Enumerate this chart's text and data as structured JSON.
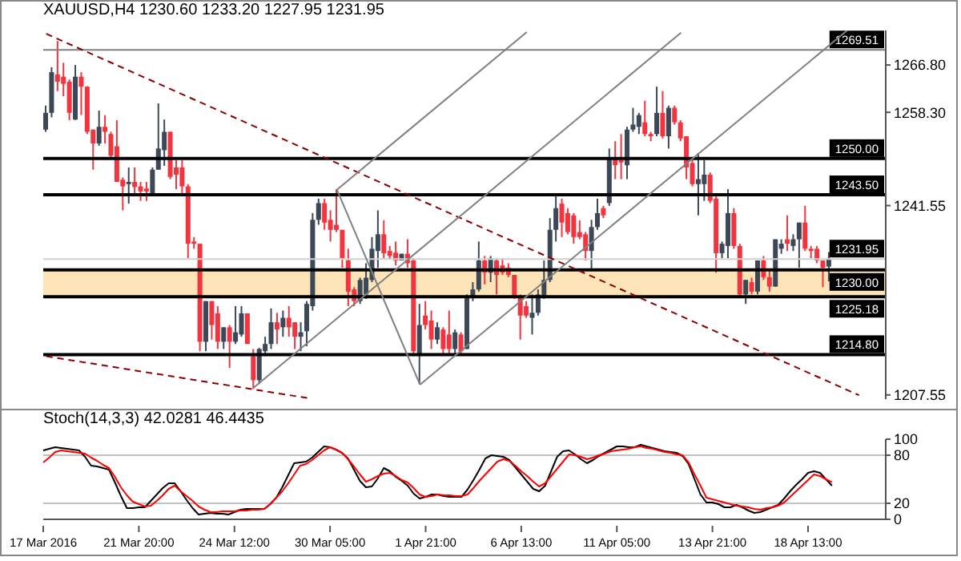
{
  "chart_data": [
    {
      "type": "candlestick",
      "title": "XAUUSD,H4 1230.60 1233.20 1227.95 1231.95",
      "categories": [
        null,
        null,
        null,
        null,
        null,
        null,
        null,
        null,
        null,
        null,
        null,
        null,
        null,
        null,
        null,
        null,
        null,
        null,
        null,
        null,
        null,
        null,
        null,
        null,
        null,
        null,
        null,
        null,
        null,
        null,
        null,
        null,
        null,
        null,
        null,
        null,
        null,
        null,
        null,
        null,
        null,
        null,
        null,
        null,
        null,
        null,
        null,
        null,
        null,
        null,
        null,
        null,
        null,
        null,
        null,
        null,
        null,
        null,
        null,
        null,
        null,
        null,
        null,
        null,
        null,
        null,
        null,
        null,
        null,
        null,
        null,
        null,
        null,
        null,
        null,
        null,
        null,
        null,
        null,
        null,
        null,
        null,
        null,
        null,
        null,
        null,
        null,
        null,
        null,
        null,
        null,
        null,
        null,
        null,
        null,
        null,
        null,
        null,
        null,
        null,
        null,
        null,
        null,
        null,
        null,
        null,
        null,
        null,
        null,
        null,
        null,
        null,
        null,
        null,
        null,
        null,
        null,
        null,
        null,
        null,
        null,
        null,
        null,
        null,
        null,
        null,
        null,
        null,
        null,
        null,
        null,
        null,
        null,
        null,
        null,
        null,
        null,
        null,
        null,
        null,
        null,
        null
      ],
      "ohlc": [
        [
          1255.2,
          1259.5,
          1254.8,
          1258.2
        ],
        [
          1258.2,
          1266.4,
          1257.4,
          1265.5
        ],
        [
          1265.1,
          1271.1,
          1262.1,
          1263.8
        ],
        [
          1264.7,
          1267.2,
          1261.2,
          1263.4
        ],
        [
          1263.8,
          1264.2,
          1256.9,
          1258.2
        ],
        [
          1257.0,
          1266.8,
          1256.9,
          1264.7
        ],
        [
          1264.7,
          1265.5,
          1257.8,
          1262.9
        ],
        [
          1262.9,
          1263.0,
          1254.4,
          1254.8
        ],
        [
          1255.2,
          1255.2,
          1248.0,
          1252.7
        ],
        [
          1252.7,
          1258.6,
          1252.3,
          1255.7
        ],
        [
          1255.7,
          1257.8,
          1252.7,
          1254.8
        ],
        [
          1254.4,
          1254.8,
          1250.0,
          1250.5
        ],
        [
          1252.2,
          1256.9,
          1245.8,
          1245.8
        ],
        [
          1246.2,
          1246.6,
          1240.7,
          1245.0
        ],
        [
          1245.4,
          1248.4,
          1241.9,
          1245.8
        ],
        [
          1245.8,
          1248.4,
          1243.2,
          1244.9
        ],
        [
          1245.0,
          1245.8,
          1242.4,
          1244.1
        ],
        [
          1244.6,
          1245.8,
          1242.4,
          1244.1
        ],
        [
          1243.7,
          1248.4,
          1243.2,
          1248.0
        ],
        [
          1248.0,
          1259.9,
          1248.0,
          1251.8
        ],
        [
          1251.5,
          1257.0,
          1248.7,
          1254.8
        ],
        [
          1254.8,
          1254.8,
          1246.3,
          1246.7
        ],
        [
          1248.4,
          1249.7,
          1244.5,
          1247.1
        ],
        [
          1248.4,
          1249.7,
          1243.3,
          1245.0
        ],
        [
          1245.0,
          1245.4,
          1232.1,
          1234.7
        ],
        [
          1235.1,
          1235.9,
          1233.8,
          1234.7
        ],
        [
          1234.7,
          1234.7,
          1215.4,
          1217.1
        ],
        [
          1217.1,
          1224.4,
          1215.4,
          1224.4
        ],
        [
          1224.4,
          1224.4,
          1217.5,
          1220.1
        ],
        [
          1222.2,
          1223.5,
          1215.8,
          1217.1
        ],
        [
          1217.1,
          1219.7,
          1215.8,
          1219.7
        ],
        [
          1219.7,
          1220.1,
          1212.4,
          1217.1
        ],
        [
          1217.1,
          1223.5,
          1216.7,
          1218.8
        ],
        [
          1218.4,
          1223.5,
          1218.0,
          1222.2
        ],
        [
          1222.2,
          1222.2,
          1216.7,
          1216.7
        ],
        [
          1214.5,
          1215.8,
          1208.6,
          1210.2
        ],
        [
          1210.2,
          1216.0,
          1209.5,
          1215.8
        ],
        [
          1215.4,
          1218.0,
          1214.5,
          1216.7
        ],
        [
          1216.7,
          1223.1,
          1215.8,
          1220.6
        ],
        [
          1220.6,
          1222.3,
          1216.7,
          1219.3
        ],
        [
          1219.7,
          1222.7,
          1218.0,
          1221.4
        ],
        [
          1221.4,
          1223.5,
          1218.0,
          1219.7
        ],
        [
          1220.6,
          1220.6,
          1215.8,
          1218.0
        ],
        [
          1218.0,
          1220.6,
          1215.4,
          1218.8
        ],
        [
          1219.0,
          1224.4,
          1216.3,
          1223.9
        ],
        [
          1223.5,
          1240.2,
          1222.7,
          1239.0
        ],
        [
          1239.0,
          1242.8,
          1238.1,
          1242.0
        ],
        [
          1242.0,
          1242.8,
          1237.2,
          1238.5
        ],
        [
          1239.0,
          1240.7,
          1235.1,
          1237.2
        ],
        [
          1238.1,
          1244.5,
          1236.8,
          1237.2
        ],
        [
          1237.2,
          1237.2,
          1230.4,
          1232.1
        ],
        [
          1231.7,
          1233.8,
          1223.5,
          1226.1
        ],
        [
          1226.5,
          1226.9,
          1223.5,
          1224.4
        ],
        [
          1224.4,
          1228.6,
          1223.9,
          1228.2
        ],
        [
          1225.6,
          1231.2,
          1224.8,
          1228.6
        ],
        [
          1228.2,
          1235.9,
          1227.8,
          1233.8
        ],
        [
          1233.4,
          1240.7,
          1230.4,
          1236.4
        ],
        [
          1236.4,
          1238.9,
          1232.1,
          1233.0
        ],
        [
          1233.4,
          1234.3,
          1231.9,
          1232.5
        ],
        [
          1233.1,
          1235.1,
          1230.8,
          1231.7
        ],
        [
          1231.7,
          1232.9,
          1231.7,
          1232.9
        ],
        [
          1232.9,
          1235.5,
          1230.4,
          1231.2
        ],
        [
          1231.7,
          1232.1,
          1214.5,
          1215.4
        ],
        [
          1214.9,
          1223.9,
          1209.5,
          1220.1
        ],
        [
          1221.8,
          1224.4,
          1219.3,
          1220.1
        ],
        [
          1220.9,
          1222.7,
          1215.8,
          1217.5
        ],
        [
          1217.5,
          1220.6,
          1216.7,
          1219.7
        ],
        [
          1219.3,
          1219.7,
          1214.9,
          1215.8
        ],
        [
          1218.4,
          1222.7,
          1214.9,
          1215.8
        ],
        [
          1215.8,
          1219.3,
          1214.9,
          1218.8
        ],
        [
          1218.4,
          1218.8,
          1214.9,
          1215.4
        ],
        [
          1215.8,
          1225.6,
          1215.8,
          1225.2
        ],
        [
          1225.2,
          1227.8,
          1224.4,
          1226.5
        ],
        [
          1226.5,
          1235.1,
          1226.1,
          1231.7
        ],
        [
          1231.7,
          1232.5,
          1227.4,
          1229.5
        ],
        [
          1229.5,
          1232.5,
          1227.8,
          1232.1
        ],
        [
          1231.7,
          1232.1,
          1225.6,
          1229.1
        ],
        [
          1230.8,
          1232.1,
          1229.1,
          1229.5
        ],
        [
          1230.4,
          1231.2,
          1228.7,
          1229.1
        ],
        [
          1229.1,
          1229.1,
          1224.8,
          1225.2
        ],
        [
          1225.2,
          1225.6,
          1217.5,
          1221.8
        ],
        [
          1223.5,
          1224.4,
          1221.4,
          1221.8
        ],
        [
          1221.4,
          1225.6,
          1218.4,
          1222.3
        ],
        [
          1222.3,
          1226.5,
          1221.8,
          1225.6
        ],
        [
          1225.2,
          1231.7,
          1224.8,
          1228.2
        ],
        [
          1228.2,
          1239.3,
          1227.8,
          1237.2
        ],
        [
          1237.2,
          1243.2,
          1235.1,
          1241.1
        ],
        [
          1241.9,
          1242.8,
          1235.9,
          1238.5
        ],
        [
          1240.2,
          1241.1,
          1236.4,
          1236.8
        ],
        [
          1239.8,
          1240.2,
          1234.7,
          1235.9
        ],
        [
          1236.8,
          1238.9,
          1235.5,
          1235.9
        ],
        [
          1236.4,
          1236.8,
          1231.7,
          1233.4
        ],
        [
          1233.4,
          1239.0,
          1229.9,
          1237.7
        ],
        [
          1237.7,
          1242.8,
          1237.2,
          1240.2
        ],
        [
          1241.1,
          1241.5,
          1239.3,
          1239.8
        ],
        [
          1242.0,
          1251.8,
          1241.5,
          1250.1
        ],
        [
          1250.1,
          1253.1,
          1246.3,
          1248.8
        ],
        [
          1249.7,
          1254.4,
          1246.3,
          1249.3
        ],
        [
          1248.8,
          1255.7,
          1246.3,
          1255.2
        ],
        [
          1255.2,
          1259.1,
          1254.8,
          1256.1
        ],
        [
          1255.7,
          1258.2,
          1254.4,
          1257.8
        ],
        [
          1256.5,
          1260.4,
          1254.0,
          1254.4
        ],
        [
          1254.4,
          1254.8,
          1253.1,
          1254.0
        ],
        [
          1254.4,
          1262.9,
          1254.0,
          1258.2
        ],
        [
          1258.2,
          1262.1,
          1253.6,
          1254.0
        ],
        [
          1254.0,
          1259.5,
          1251.8,
          1259.1
        ],
        [
          1259.1,
          1259.5,
          1256.1,
          1256.5
        ],
        [
          1256.5,
          1256.9,
          1253.1,
          1253.6
        ],
        [
          1254.0,
          1254.0,
          1246.3,
          1248.4
        ],
        [
          1249.2,
          1249.7,
          1245.0,
          1245.4
        ],
        [
          1245.4,
          1251.0,
          1239.8,
          1246.3
        ],
        [
          1245.4,
          1249.7,
          1242.4,
          1247.1
        ],
        [
          1247.1,
          1247.5,
          1242.0,
          1242.4
        ],
        [
          1242.8,
          1243.2,
          1229.5,
          1233.0
        ],
        [
          1233.0,
          1235.1,
          1232.1,
          1234.7
        ],
        [
          1234.3,
          1244.5,
          1232.1,
          1240.2
        ],
        [
          1240.2,
          1241.1,
          1233.8,
          1234.3
        ],
        [
          1234.3,
          1234.7,
          1225.2,
          1225.6
        ],
        [
          1225.6,
          1228.2,
          1223.9,
          1228.2
        ],
        [
          1227.8,
          1228.6,
          1225.6,
          1226.1
        ],
        [
          1226.1,
          1231.7,
          1225.6,
          1231.7
        ],
        [
          1231.7,
          1232.5,
          1228.2,
          1228.7
        ],
        [
          1228.7,
          1230.0,
          1226.1,
          1227.0
        ],
        [
          1227.0,
          1235.5,
          1227.0,
          1235.5
        ],
        [
          1233.8,
          1235.5,
          1232.9,
          1234.7
        ],
        [
          1235.5,
          1239.8,
          1233.4,
          1234.7
        ],
        [
          1234.3,
          1236.4,
          1233.4,
          1235.5
        ],
        [
          1235.5,
          1238.5,
          1230.4,
          1238.5
        ],
        [
          1238.5,
          1241.5,
          1233.4,
          1233.8
        ],
        [
          1233.8,
          1234.3,
          1232.1,
          1233.4
        ],
        [
          1233.8,
          1234.3,
          1231.2,
          1231.7
        ],
        [
          1231.7,
          1231.7,
          1226.9,
          1230.4
        ],
        [
          1230.6,
          1233.2,
          1227.95,
          1231.95
        ],
        null,
        null,
        null,
        null,
        null,
        null,
        null,
        null,
        null
      ],
      "series": [
        {
          "type": "line",
          "color": "#8b0000",
          "line_style": "dashed",
          "values": [
            1272.4,
            null,
            null,
            null,
            null,
            null,
            null,
            null,
            null,
            null,
            null,
            null,
            null,
            null,
            null,
            null,
            null,
            null,
            null,
            null,
            null,
            null,
            null,
            null,
            null,
            null,
            null,
            null,
            null,
            null,
            null,
            null,
            null,
            null,
            null,
            null,
            null,
            null,
            null,
            null,
            null,
            null,
            null,
            null,
            null,
            null,
            null,
            null,
            null,
            null,
            null,
            null,
            null,
            null,
            null,
            null,
            null,
            null,
            null,
            null,
            null,
            null,
            null,
            null,
            null,
            null,
            null,
            null,
            null,
            null,
            null,
            null,
            null,
            null,
            null,
            null,
            null,
            null,
            null,
            null,
            null,
            null,
            null,
            null,
            null,
            null,
            null,
            null,
            null,
            null,
            null,
            null,
            null,
            null,
            null,
            null,
            null,
            null,
            null,
            null,
            null,
            null,
            null,
            null,
            null,
            null,
            null,
            null,
            null,
            null,
            null,
            null,
            null,
            null,
            null,
            null,
            null,
            null,
            null,
            null,
            null,
            null,
            null,
            null,
            null,
            null,
            null,
            null,
            null,
            null,
            null,
            null,
            null,
            null,
            null,
            null,
            null,
            1207.5,
            null,
            null,
            null,
            null
          ]
        },
        {
          "type": "line",
          "color": "#8b0000",
          "line_style": "dashed",
          "values": [
            1214.5,
            null,
            null,
            null,
            null,
            null,
            null,
            null,
            null,
            null,
            null,
            null,
            null,
            null,
            null,
            null,
            null,
            null,
            null,
            null,
            null,
            null,
            null,
            null,
            null,
            null,
            null,
            null,
            null,
            null,
            null,
            null,
            null,
            null,
            null,
            null,
            null,
            null,
            null,
            null,
            null,
            null,
            null,
            null,
            1207.0,
            null,
            null,
            null,
            null,
            null,
            null,
            null,
            null,
            null,
            null,
            null,
            null,
            null,
            null,
            null,
            null,
            null,
            null,
            null,
            null,
            null,
            null,
            null,
            null,
            null,
            null,
            null,
            null,
            null,
            null,
            null,
            null,
            null,
            null,
            null,
            null,
            null,
            null,
            null,
            null,
            null,
            null,
            null,
            null,
            null,
            null,
            null,
            null,
            null,
            null,
            null,
            null,
            null,
            null,
            null,
            null,
            null,
            null,
            null,
            null,
            null,
            null,
            null,
            null,
            null,
            null,
            null,
            null,
            null,
            null,
            null,
            null,
            null,
            null,
            null,
            null,
            null,
            null,
            null,
            null,
            null,
            null,
            null,
            null,
            null,
            null,
            null,
            null,
            null,
            null,
            null,
            null,
            null,
            null,
            null,
            null,
            null
          ]
        },
        {
          "type": "line",
          "color": "#808080",
          "line_style": "solid",
          "values": [
            null,
            null,
            null,
            null,
            null,
            null,
            null,
            null,
            null,
            null,
            null,
            null,
            null,
            null,
            null,
            null,
            null,
            null,
            null,
            null,
            null,
            null,
            null,
            null,
            null,
            null,
            null,
            null,
            null,
            null,
            null,
            null,
            null,
            null,
            null,
            null,
            null,
            null,
            null,
            null,
            null,
            null,
            null,
            null,
            null,
            null,
            null,
            null,
            null,
            1244.4,
            null,
            null,
            null,
            null,
            null,
            null,
            null,
            null,
            null,
            null,
            null,
            null,
            null,
            null,
            null,
            null,
            null,
            null,
            null,
            null,
            null,
            null,
            null,
            null,
            null,
            null,
            null,
            null,
            null,
            null,
            null,
            1272.7,
            null,
            null,
            null,
            null,
            null,
            null,
            null,
            null,
            null,
            null,
            null,
            null,
            null,
            null,
            null,
            null,
            null,
            null,
            null,
            null,
            null,
            null,
            null,
            null,
            null,
            null,
            null,
            null,
            null,
            null,
            null,
            null,
            null,
            null,
            null,
            null,
            null,
            null,
            null,
            null,
            null,
            null,
            null,
            null,
            null,
            null,
            null,
            null,
            null,
            null,
            null,
            null,
            null,
            null,
            null,
            null,
            null,
            null,
            null,
            null
          ]
        },
        {
          "type": "line",
          "color": "#808080",
          "line_style": "solid",
          "values": [
            null,
            null,
            null,
            null,
            null,
            null,
            null,
            null,
            null,
            null,
            null,
            null,
            null,
            null,
            null,
            null,
            null,
            null,
            null,
            null,
            null,
            null,
            null,
            null,
            null,
            null,
            null,
            null,
            null,
            null,
            null,
            null,
            null,
            null,
            null,
            1208.9,
            null,
            null,
            null,
            null,
            null,
            null,
            null,
            null,
            null,
            null,
            null,
            null,
            null,
            null,
            null,
            null,
            null,
            null,
            null,
            null,
            null,
            null,
            null,
            null,
            null,
            null,
            null,
            null,
            null,
            null,
            null,
            null,
            null,
            null,
            null,
            null,
            null,
            null,
            null,
            null,
            null,
            null,
            null,
            null,
            null,
            null,
            null,
            null,
            null,
            null,
            null,
            null,
            null,
            null,
            null,
            null,
            null,
            null,
            null,
            null,
            null,
            null,
            null,
            null,
            null,
            null,
            null,
            null,
            null,
            null,
            null,
            1272.6,
            null,
            null,
            null,
            null,
            null,
            null,
            null,
            null,
            null,
            null,
            null,
            null,
            null,
            null,
            null,
            null,
            null,
            null,
            null,
            null,
            null,
            null,
            null,
            null,
            null,
            null,
            null,
            null,
            null,
            null,
            null,
            null,
            null,
            null
          ]
        },
        {
          "type": "line",
          "color": "#808080",
          "line_style": "solid",
          "values": [
            null,
            null,
            null,
            null,
            null,
            null,
            null,
            null,
            null,
            null,
            null,
            null,
            null,
            null,
            null,
            null,
            null,
            null,
            null,
            null,
            null,
            null,
            null,
            null,
            null,
            null,
            null,
            null,
            null,
            null,
            null,
            null,
            null,
            null,
            null,
            null,
            null,
            null,
            null,
            null,
            null,
            null,
            null,
            null,
            null,
            null,
            null,
            null,
            null,
            null,
            null,
            null,
            null,
            null,
            null,
            null,
            null,
            null,
            null,
            null,
            null,
            null,
            null,
            1209.4,
            null,
            null,
            null,
            null,
            null,
            null,
            null,
            null,
            null,
            null,
            null,
            null,
            null,
            null,
            null,
            null,
            null,
            null,
            null,
            null,
            null,
            null,
            null,
            null,
            null,
            null,
            null,
            null,
            null,
            null,
            null,
            null,
            null,
            null,
            null,
            null,
            null,
            null,
            null,
            null,
            null,
            null,
            null,
            null,
            null,
            null,
            null,
            null,
            null,
            null,
            null,
            null,
            null,
            null,
            null,
            null,
            null,
            null,
            null,
            null,
            null,
            null,
            null,
            null,
            null,
            null,
            null,
            null,
            null,
            null,
            null,
            1273.0,
            null,
            null,
            null,
            null,
            null,
            null
          ]
        },
        {
          "type": "line",
          "color": "#808080",
          "line_style": "solid",
          "values": [
            null,
            null,
            null,
            null,
            null,
            null,
            null,
            null,
            null,
            null,
            null,
            null,
            null,
            null,
            null,
            null,
            null,
            null,
            null,
            null,
            null,
            null,
            null,
            null,
            null,
            null,
            null,
            null,
            null,
            null,
            null,
            null,
            null,
            null,
            null,
            null,
            null,
            null,
            null,
            null,
            null,
            null,
            null,
            null,
            null,
            null,
            null,
            null,
            null,
            1244.4,
            null,
            null,
            null,
            null,
            null,
            null,
            null,
            null,
            null,
            null,
            null,
            null,
            null,
            1209.4,
            null,
            null,
            null,
            null,
            null,
            null,
            null,
            null,
            null,
            null,
            null,
            null,
            null,
            null,
            null,
            null,
            null,
            null,
            null,
            null,
            null,
            null,
            null,
            null,
            null,
            null,
            null,
            null,
            null,
            null,
            null,
            null,
            null,
            null,
            null,
            null,
            null,
            null,
            null,
            null,
            null,
            null,
            null,
            null,
            null,
            null,
            null,
            null,
            null,
            null,
            null,
            null,
            null,
            null,
            null,
            null,
            null,
            null,
            null,
            null,
            null,
            null,
            null,
            null,
            null,
            null,
            null,
            null,
            null,
            null,
            null,
            null,
            null,
            null,
            null,
            null,
            null,
            null
          ]
        }
      ],
      "ylim": [
        1206.8,
        1273
      ],
      "yticks": [
        1207.55,
        1241.55,
        {
          "value": 1258.3,
          "label": "1258.30"
        },
        {
          "value": 1266.8,
          "label": "1266.80"
        }
      ],
      "tick_labels": "y",
      "ref_lines": [
        {
          "axis": "y",
          "value": 1269.51,
          "label": "1269.51",
          "color": "#808080"
        },
        {
          "axis": "y",
          "value": 1250,
          "label": "1250.00",
          "color": "#000000"
        },
        {
          "axis": "y",
          "value": 1243.5,
          "label": "1243.50",
          "color": "#000000"
        },
        {
          "axis": "y",
          "value": 1231.95,
          "label": "1231.95",
          "color": "#d0d0d0"
        },
        {
          "axis": "y",
          "value": 1230,
          "label": "1230.00",
          "color": "#000000"
        },
        {
          "axis": "y",
          "value": 1225.18,
          "label": "1225.18",
          "color": "#000000"
        },
        {
          "axis": "y",
          "value": 1214.8,
          "label": "1214.80",
          "color": "#000000"
        }
      ],
      "bands": [
        {
          "axis": "y",
          "from": 1225.18,
          "to": 1230,
          "color": "#fde3b8"
        }
      ]
    },
    {
      "type": "line",
      "title": "Stoch(14,3,3) 42.0281 46.4435",
      "marker": "none",
      "series": [
        {
          "color": "#000000",
          "values": [
            86,
            88,
            90,
            89,
            88,
            87,
            86,
            78,
            67,
            66,
            64,
            62,
            46,
            29,
            14,
            14,
            15,
            15,
            23,
            31,
            39,
            45,
            45,
            35,
            24,
            14,
            6,
            7,
            8,
            7,
            7,
            6,
            9,
            12,
            13,
            13,
            13,
            13,
            19,
            27,
            40,
            55,
            70,
            71,
            72,
            77,
            84,
            91,
            90,
            87,
            83,
            76,
            62,
            48,
            40,
            41,
            51,
            64,
            60,
            53,
            48,
            42,
            32,
            26,
            28,
            31,
            31,
            29,
            28,
            28,
            28,
            37,
            49,
            62,
            76,
            80,
            79,
            78,
            74,
            65,
            56,
            47,
            38,
            35,
            42,
            60,
            78,
            85,
            86,
            81,
            75,
            70,
            74,
            79,
            83,
            87,
            91,
            91,
            90,
            90,
            93,
            91,
            89,
            87,
            85,
            84,
            83,
            79,
            69,
            50,
            31,
            21,
            21,
            19,
            15,
            15,
            18,
            15,
            11,
            8,
            9,
            12,
            15,
            18,
            26,
            35,
            43,
            50,
            58,
            60,
            58,
            50,
            42.0281,
            null,
            null,
            null,
            null,
            null,
            null,
            null,
            null,
            null
          ]
        },
        {
          "color": "#ff0000",
          "values": [
            71,
            77,
            84,
            86,
            85,
            84,
            83,
            82,
            77,
            73,
            68,
            64,
            53,
            40,
            30,
            22,
            19,
            16,
            17,
            23,
            30,
            38,
            42,
            35,
            29,
            23,
            16,
            12,
            9,
            9,
            10,
            10,
            10,
            11,
            11,
            12,
            12,
            13,
            19,
            27,
            35,
            45,
            56,
            67,
            69,
            74,
            80,
            86,
            90,
            87,
            83,
            75,
            66,
            56,
            47,
            50,
            54,
            57,
            58,
            54,
            49,
            46,
            39,
            31,
            28,
            29,
            31,
            30,
            30,
            29,
            29,
            31,
            39,
            48,
            56,
            64,
            72,
            75,
            73,
            67,
            60,
            54,
            47,
            41,
            45,
            54,
            63,
            72,
            81,
            80,
            78,
            75,
            77,
            80,
            82,
            85,
            86,
            87,
            88,
            90,
            91,
            89,
            88,
            86,
            84,
            83,
            81,
            80,
            71,
            56,
            42,
            27,
            25,
            23,
            21,
            19,
            17,
            16,
            15,
            13,
            12,
            14,
            15,
            17,
            21,
            28,
            35,
            42,
            49,
            56,
            54,
            50,
            46.4435,
            null,
            null,
            null,
            null,
            null,
            null,
            null,
            null,
            null
          ]
        }
      ],
      "categories": [
        "17 Mar 2016",
        null,
        null,
        null,
        null,
        null,
        null,
        null,
        null,
        null,
        null,
        null,
        null,
        null,
        null,
        null,
        "21 Mar 20:00",
        null,
        null,
        null,
        null,
        null,
        null,
        null,
        null,
        null,
        null,
        null,
        null,
        null,
        null,
        null,
        "24 Mar 12:00",
        null,
        null,
        null,
        null,
        null,
        null,
        null,
        null,
        null,
        null,
        null,
        null,
        null,
        null,
        null,
        "30 Mar 05:00",
        null,
        null,
        null,
        null,
        null,
        null,
        null,
        null,
        null,
        null,
        null,
        null,
        null,
        null,
        null,
        "1 Apr 21:00",
        null,
        null,
        null,
        null,
        null,
        null,
        null,
        null,
        null,
        null,
        null,
        null,
        null,
        null,
        null,
        "6 Apr 13:00",
        null,
        null,
        null,
        null,
        null,
        null,
        null,
        null,
        null,
        null,
        null,
        null,
        null,
        null,
        null,
        "11 Apr 05:00",
        null,
        null,
        null,
        null,
        null,
        null,
        null,
        null,
        null,
        null,
        null,
        null,
        null,
        null,
        null,
        "13 Apr 21:00",
        null,
        null,
        null,
        null,
        null,
        null,
        null,
        null,
        null,
        null,
        null,
        null,
        null,
        null,
        null,
        "18 Apr 13:00",
        null,
        null,
        null,
        null,
        null,
        null,
        null,
        null,
        null,
        null,
        null,
        null,
        null
      ],
      "ylim": [
        0,
        100
      ],
      "yticks": [
        0,
        20,
        80,
        100
      ],
      "ref_lines": [
        {
          "axis": "y",
          "value": 20,
          "color": "#c0c0c0"
        },
        {
          "axis": "y",
          "value": 80,
          "color": "#c0c0c0"
        }
      ]
    }
  ]
}
